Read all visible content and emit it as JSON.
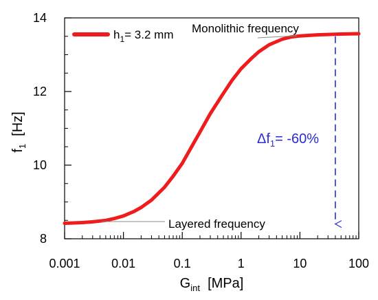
{
  "chart_data": {
    "type": "line",
    "x_scale": "log",
    "xlim": [
      0.001,
      100
    ],
    "ylim": [
      8,
      14
    ],
    "grid": false,
    "legend_position": "top-left",
    "xlabel": {
      "main": "G",
      "sub": "int",
      "rest": "  [MPa]"
    },
    "ylabel": {
      "main": "f",
      "sub": "1",
      "rest": "  [Hz]"
    },
    "x_ticks": [
      {
        "value": 0.001,
        "label": "0.001"
      },
      {
        "value": 0.01,
        "label": "0.01"
      },
      {
        "value": 0.1,
        "label": "0.1"
      },
      {
        "value": 1,
        "label": "1"
      },
      {
        "value": 10,
        "label": "10"
      },
      {
        "value": 100,
        "label": "100"
      }
    ],
    "y_ticks": [
      {
        "value": 8,
        "label": "8"
      },
      {
        "value": 10,
        "label": "10"
      },
      {
        "value": 12,
        "label": "12"
      },
      {
        "value": 14,
        "label": "14"
      }
    ],
    "series": [
      {
        "name": {
          "main": "h",
          "sub": "1",
          "rest": "= 3.2 mm"
        },
        "color": "#ee1c1c",
        "x": [
          0.001,
          0.002,
          0.003,
          0.005,
          0.007,
          0.01,
          0.015,
          0.02,
          0.03,
          0.05,
          0.07,
          0.1,
          0.15,
          0.2,
          0.3,
          0.5,
          0.7,
          1,
          1.5,
          2,
          3,
          5,
          7,
          10,
          20,
          30,
          50,
          100
        ],
        "y": [
          8.42,
          8.44,
          8.46,
          8.5,
          8.55,
          8.62,
          8.74,
          8.85,
          9.05,
          9.4,
          9.7,
          10.05,
          10.55,
          10.9,
          11.4,
          11.95,
          12.3,
          12.62,
          12.9,
          13.08,
          13.27,
          13.42,
          13.48,
          13.51,
          13.54,
          13.55,
          13.56,
          13.57
        ]
      }
    ],
    "annotations": {
      "monolithic": {
        "text": "Monolithic frequency"
      },
      "layered": {
        "text": "Layered frequency"
      },
      "delta": {
        "main": "Δf",
        "sub": "1",
        "rest": "= -60%",
        "color": "#2b2bd6",
        "x": 40,
        "y_from": 13.5,
        "y_to": 8.4
      }
    }
  }
}
